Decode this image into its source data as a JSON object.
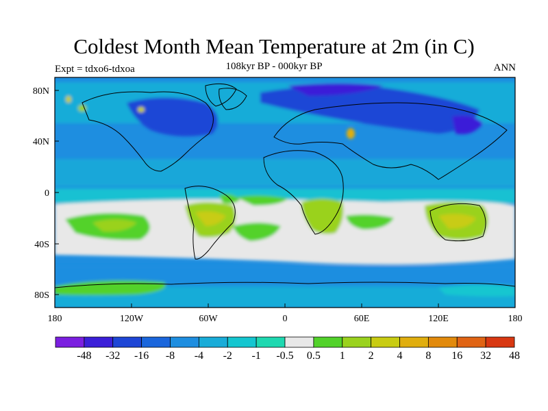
{
  "title": "Coldest Month Mean Temperature at 2m (in C)",
  "subtitle": "108kyr BP - 000kyr BP",
  "left_label": "Expt = tdxo6-tdxoa",
  "right_label": "ANN",
  "map": {
    "lat_ticks": [
      "80N",
      "40N",
      "0",
      "40S",
      "80S"
    ],
    "lon_ticks": [
      "180",
      "120W",
      "60W",
      "0",
      "60E",
      "120E",
      "180"
    ]
  },
  "colorbar": {
    "labels": [
      "-48",
      "-32",
      "-16",
      "-8",
      "-4",
      "-2",
      "-1",
      "-0.5",
      "0.5",
      "1",
      "2",
      "4",
      "8",
      "16",
      "32",
      "48"
    ],
    "colors": [
      "#7b1fe0",
      "#3b1fd8",
      "#1e46d6",
      "#1a66dc",
      "#1e8ee0",
      "#19acd8",
      "#14c6d0",
      "#1ed8b0",
      "#e8e8e8",
      "#52d22a",
      "#9ad21e",
      "#c8cc12",
      "#e0ae0e",
      "#e28a0c",
      "#e06414",
      "#d83812"
    ]
  }
}
